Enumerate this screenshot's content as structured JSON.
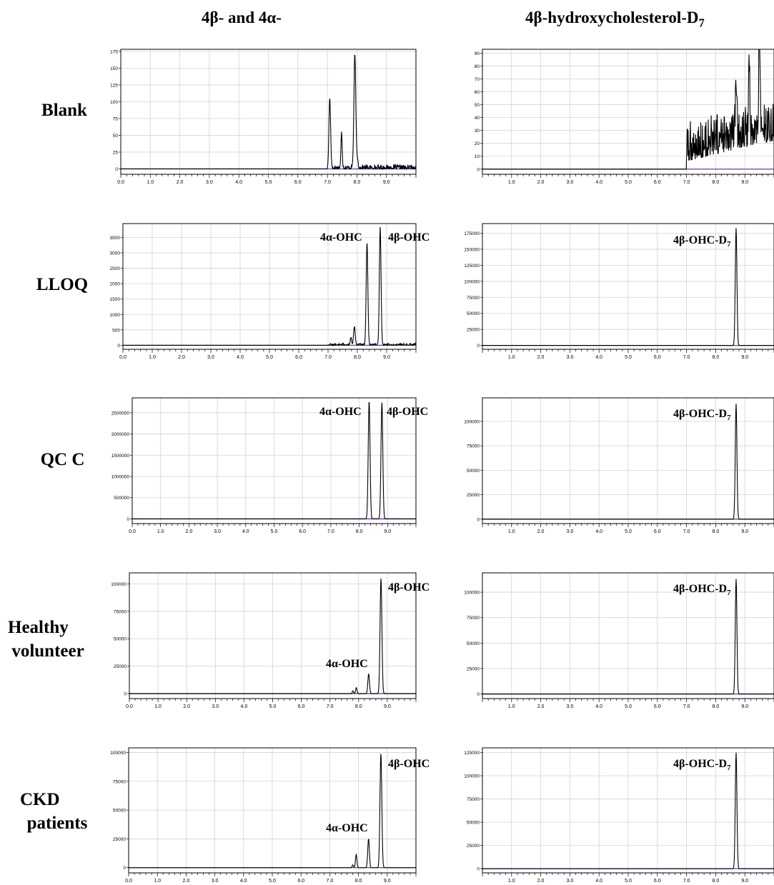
{
  "columns": [
    {
      "title": "4β- and 4α-"
    },
    {
      "title": "4β-hydroxycholesterol-D",
      "subscript": "7"
    }
  ],
  "rows": [
    {
      "label_lines": [
        "Blank"
      ]
    },
    {
      "label_lines": [
        "LLOQ"
      ]
    },
    {
      "label_lines": [
        "QC C"
      ]
    },
    {
      "label_lines": [
        "Healthy",
        "volunteer"
      ]
    },
    {
      "label_lines": [
        "CKD",
        "patients"
      ]
    }
  ],
  "colors": {
    "trace": "#000000",
    "baseline": "#7a2fd0",
    "grid": "#d3d3d3",
    "frame": "#000000"
  },
  "chart_data": [
    {
      "type": "line",
      "panel": "Blank / 4β- and 4α-",
      "x_ticks": [
        "0.0",
        "1.0",
        "2.0",
        "3.0",
        "4.0",
        "5.0",
        "6.0",
        "7.0",
        "8.0",
        "9.0"
      ],
      "xlim": [
        0,
        10
      ],
      "y_ticks": [
        "0",
        "25",
        "50",
        "75",
        "100",
        "125",
        "150",
        "175"
      ],
      "ylim": [
        -8,
        178
      ],
      "profile": "noise",
      "noise_start": 7.1,
      "noise_level": 4,
      "peaks": [
        {
          "x": 7.08,
          "y": 105,
          "w": 0.04
        },
        {
          "x": 7.48,
          "y": 52,
          "w": 0.03
        },
        {
          "x": 7.93,
          "y": 168,
          "w": 0.045
        },
        {
          "x": 8.02,
          "y": 12,
          "w": 0.03
        }
      ],
      "annotations": []
    },
    {
      "type": "line",
      "panel": "Blank / 4β-hydroxycholesterol-D7",
      "x_ticks": [
        "1.0",
        "2.0",
        "3.0",
        "4.0",
        "5.0",
        "6.0",
        "7.0",
        "8.0",
        "9.0"
      ],
      "xlim": [
        0,
        10
      ],
      "y_ticks": [
        "0",
        "10",
        "20",
        "30",
        "40",
        "50",
        "60",
        "70",
        "80",
        "90"
      ],
      "ylim": [
        -4,
        93
      ],
      "profile": "noise",
      "noise_start": 7.0,
      "noise_level": 20,
      "noise_trend": 16,
      "peaks": [
        {
          "x": 9.5,
          "y": 90,
          "w": 0.03
        },
        {
          "x": 9.15,
          "y": 58,
          "w": 0.03
        },
        {
          "x": 8.7,
          "y": 48,
          "w": 0.03
        }
      ],
      "annotations": []
    },
    {
      "type": "line",
      "panel": "LLOQ / 4β- and 4α-",
      "x_ticks": [
        "0.0",
        "1.0",
        "2.0",
        "3.0",
        "4.0",
        "5.0",
        "6.0",
        "7.0",
        "8.0",
        "9.0"
      ],
      "xlim": [
        0,
        10
      ],
      "y_ticks": [
        "0",
        "500",
        "1000",
        "1500",
        "2000",
        "2500",
        "3000",
        "3500"
      ],
      "ylim": [
        -130,
        3950
      ],
      "profile": "noise",
      "noise_start": 7.0,
      "noise_level": 40,
      "peaks": [
        {
          "x": 7.78,
          "y": 250,
          "w": 0.03
        },
        {
          "x": 7.9,
          "y": 580,
          "w": 0.04
        },
        {
          "x": 8.33,
          "y": 3320,
          "w": 0.04
        },
        {
          "x": 8.78,
          "y": 3800,
          "w": 0.04
        }
      ],
      "annotations": [
        {
          "text": "4α-OHC"
        },
        {
          "text": "4β-OHC"
        }
      ]
    },
    {
      "type": "line",
      "panel": "LLOQ / 4β-hydroxycholesterol-D7",
      "x_ticks": [
        "1.0",
        "2.0",
        "3.0",
        "4.0",
        "5.0",
        "6.0",
        "7.0",
        "8.0",
        "9.0"
      ],
      "xlim": [
        0,
        10
      ],
      "y_ticks": [
        "0",
        "25000",
        "50000",
        "75000",
        "100000",
        "125000",
        "150000",
        "175000"
      ],
      "ylim": [
        -6000,
        190000
      ],
      "profile": "clean",
      "peaks": [
        {
          "x": 8.7,
          "y": 183000,
          "w": 0.04
        }
      ],
      "annotations": [
        {
          "text": "4β-OHC-D",
          "subscript": "7"
        }
      ]
    },
    {
      "type": "line",
      "panel": "QC C / 4β- and 4α-",
      "x_ticks": [
        "0.0",
        "1.0",
        "2.0",
        "3.0",
        "4.0",
        "5.0",
        "6.0",
        "7.0",
        "8.0",
        "9.0"
      ],
      "xlim": [
        0,
        10
      ],
      "y_ticks": [
        "0",
        "500000",
        "1000000",
        "1500000",
        "2000000",
        "2500000"
      ],
      "ylim": [
        -110000,
        2850000
      ],
      "profile": "clean",
      "peaks": [
        {
          "x": 8.35,
          "y": 2780000,
          "w": 0.045
        },
        {
          "x": 8.8,
          "y": 2740000,
          "w": 0.045
        }
      ],
      "annotations": [
        {
          "text": "4α-OHC"
        },
        {
          "text": "4β-OHC"
        }
      ]
    },
    {
      "type": "line",
      "panel": "QC C / 4β-hydroxycholesterol-D7",
      "x_ticks": [
        "1.0",
        "2.0",
        "3.0",
        "4.0",
        "5.0",
        "6.0",
        "7.0",
        "8.0",
        "9.0"
      ],
      "xlim": [
        0,
        10
      ],
      "y_ticks": [
        "0",
        "25000",
        "50000",
        "75000",
        "100000"
      ],
      "ylim": [
        -4500,
        124000
      ],
      "profile": "clean",
      "peaks": [
        {
          "x": 8.7,
          "y": 118000,
          "w": 0.04
        }
      ],
      "annotations": [
        {
          "text": "4β-OHC-D",
          "subscript": "7"
        }
      ]
    },
    {
      "type": "line",
      "panel": "Healthy volunteer / 4β- and 4α-",
      "x_ticks": [
        "0.0",
        "1.0",
        "2.0",
        "3.0",
        "4.0",
        "5.0",
        "6.0",
        "7.0",
        "8.0",
        "9.0"
      ],
      "xlim": [
        0,
        10
      ],
      "y_ticks": [
        "0",
        "25000",
        "50000",
        "75000",
        "100000"
      ],
      "ylim": [
        -4500,
        110000
      ],
      "profile": "clean",
      "peaks": [
        {
          "x": 7.8,
          "y": 2500,
          "w": 0.03
        },
        {
          "x": 7.92,
          "y": 5500,
          "w": 0.035
        },
        {
          "x": 8.35,
          "y": 18000,
          "w": 0.04
        },
        {
          "x": 8.78,
          "y": 105000,
          "w": 0.045
        }
      ],
      "annotations": [
        {
          "text": "4β-OHC"
        },
        {
          "text": "4α-OHC"
        }
      ]
    },
    {
      "type": "line",
      "panel": "Healthy volunteer / 4β-hydroxycholesterol-D7",
      "x_ticks": [
        "1.0",
        "2.0",
        "3.0",
        "4.0",
        "5.0",
        "6.0",
        "7.0",
        "8.0",
        "9.0"
      ],
      "xlim": [
        0,
        10
      ],
      "y_ticks": [
        "0",
        "25000",
        "50000",
        "75000",
        "100000"
      ],
      "ylim": [
        -4500,
        119000
      ],
      "profile": "clean",
      "peaks": [
        {
          "x": 8.7,
          "y": 113000,
          "w": 0.04
        }
      ],
      "annotations": [
        {
          "text": "4β-OHC-D",
          "subscript": "7"
        }
      ]
    },
    {
      "type": "line",
      "panel": "CKD patients / 4β- and 4α-",
      "x_ticks": [
        "0.0",
        "1.0",
        "2.0",
        "3.0",
        "4.0",
        "5.0",
        "6.0",
        "7.0",
        "8.0",
        "9.0"
      ],
      "xlim": [
        0,
        10
      ],
      "y_ticks": [
        "0",
        "25000",
        "50000",
        "75000",
        "100000"
      ],
      "ylim": [
        -4500,
        104000
      ],
      "profile": "clean",
      "peaks": [
        {
          "x": 7.8,
          "y": 2500,
          "w": 0.03
        },
        {
          "x": 7.92,
          "y": 11500,
          "w": 0.035
        },
        {
          "x": 8.35,
          "y": 25000,
          "w": 0.04
        },
        {
          "x": 8.78,
          "y": 99000,
          "w": 0.045
        }
      ],
      "annotations": [
        {
          "text": "4β-OHC"
        },
        {
          "text": "4α-OHC"
        }
      ]
    },
    {
      "type": "line",
      "panel": "CKD patients / 4β-hydroxycholesterol-D7",
      "x_ticks": [
        "1.0",
        "2.0",
        "3.0",
        "4.0",
        "5.0",
        "6.0",
        "7.0",
        "8.0",
        "9.0"
      ],
      "xlim": [
        0,
        10
      ],
      "y_ticks": [
        "0",
        "25000",
        "50000",
        "75000",
        "100000",
        "125000"
      ],
      "ylim": [
        -4500,
        130000
      ],
      "profile": "clean",
      "peaks": [
        {
          "x": 8.7,
          "y": 125000,
          "w": 0.04
        }
      ],
      "annotations": [
        {
          "text": "4β-OHC-D",
          "subscript": "7"
        }
      ]
    }
  ]
}
